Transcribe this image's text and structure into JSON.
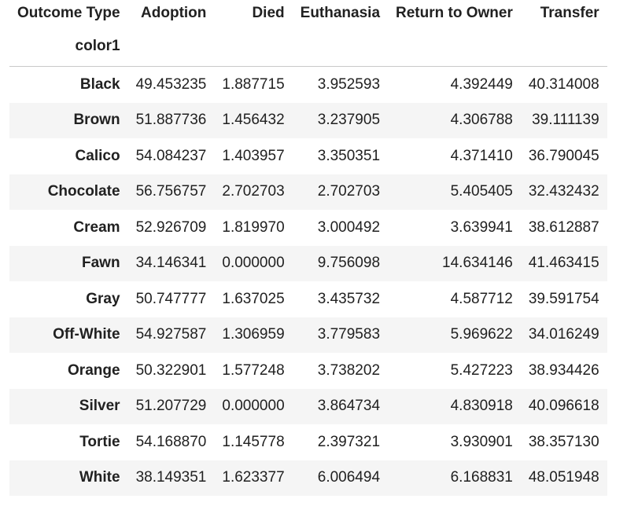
{
  "table": {
    "columns_header_label": "Outcome Type",
    "index_name": "color1",
    "columns": [
      "Adoption",
      "Died",
      "Euthanasia",
      "Return to Owner",
      "Transfer"
    ],
    "rows": [
      {
        "label": "Black",
        "values": [
          "49.453235",
          "1.887715",
          "3.952593",
          "4.392449",
          "40.314008"
        ]
      },
      {
        "label": "Brown",
        "values": [
          "51.887736",
          "1.456432",
          "3.237905",
          "4.306788",
          "39.111139"
        ]
      },
      {
        "label": "Calico",
        "values": [
          "54.084237",
          "1.403957",
          "3.350351",
          "4.371410",
          "36.790045"
        ]
      },
      {
        "label": "Chocolate",
        "values": [
          "56.756757",
          "2.702703",
          "2.702703",
          "5.405405",
          "32.432432"
        ]
      },
      {
        "label": "Cream",
        "values": [
          "52.926709",
          "1.819970",
          "3.000492",
          "3.639941",
          "38.612887"
        ]
      },
      {
        "label": "Fawn",
        "values": [
          "34.146341",
          "0.000000",
          "9.756098",
          "14.634146",
          "41.463415"
        ]
      },
      {
        "label": "Gray",
        "values": [
          "50.747777",
          "1.637025",
          "3.435732",
          "4.587712",
          "39.591754"
        ]
      },
      {
        "label": "Off-White",
        "values": [
          "54.927587",
          "1.306959",
          "3.779583",
          "5.969622",
          "34.016249"
        ]
      },
      {
        "label": "Orange",
        "values": [
          "50.322901",
          "1.577248",
          "3.738202",
          "5.427223",
          "38.934426"
        ]
      },
      {
        "label": "Silver",
        "values": [
          "51.207729",
          "0.000000",
          "3.864734",
          "4.830918",
          "40.096618"
        ]
      },
      {
        "label": "Tortie",
        "values": [
          "54.168870",
          "1.145778",
          "2.397321",
          "3.930901",
          "38.357130"
        ]
      },
      {
        "label": "White",
        "values": [
          "38.149351",
          "1.623377",
          "6.006494",
          "6.168831",
          "48.051948"
        ]
      }
    ]
  }
}
